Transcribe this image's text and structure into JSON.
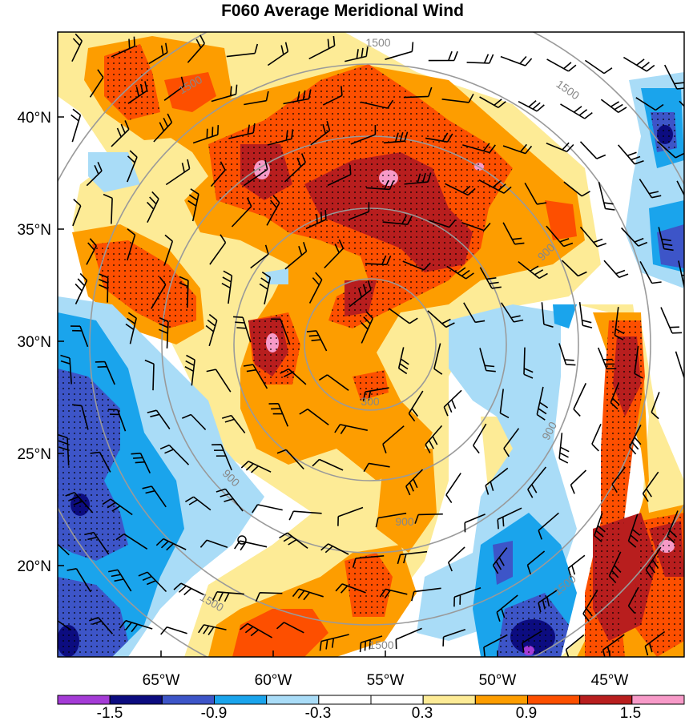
{
  "title": "F060 Average Meridional Wind",
  "lat_labels": [
    "40°N",
    "35°N",
    "30°N",
    "25°N",
    "20°N"
  ],
  "lon_labels": [
    "65°W",
    "60°W",
    "55°W",
    "50°W",
    "45°W"
  ],
  "ring_labels": [
    "300",
    "900",
    "1500"
  ],
  "colorbar": {
    "colors": [
      "#a43bd6",
      "#0c0c80",
      "#3d55c8",
      "#1aa4ec",
      "#a9dcf7",
      "#ffffff",
      "#ffffff",
      "#fdeb96",
      "#fd9d00",
      "#fd4f00",
      "#b81e1e",
      "#f79ac8"
    ],
    "labels": [
      "-1.5",
      "-0.9",
      "-0.3",
      "0.3",
      "0.9",
      "1.5"
    ]
  },
  "palette": {
    "deep_blue": "#0c0c80",
    "blue": "#3d55c8",
    "mid_blue": "#1aa4ec",
    "light_blue": "#a9dcf7",
    "light_yellow": "#fdeb96",
    "orange": "#fd9d00",
    "red_orange": "#fd4f00",
    "dark_red": "#b81e1e",
    "pink": "#f79ac8",
    "purple": "#a43bd6"
  }
}
